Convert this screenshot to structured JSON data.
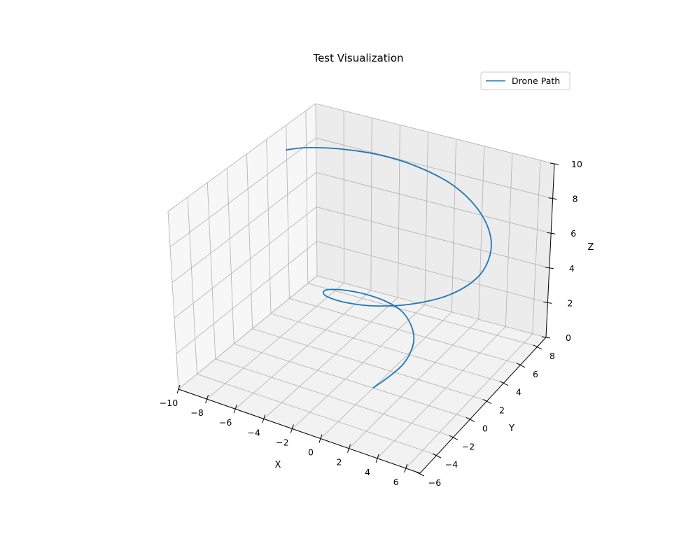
{
  "chart_data": {
    "type": "line",
    "projection": "3d",
    "title": "Test Visualization",
    "xlabel": "X",
    "ylabel": "Y",
    "zlabel": "Z",
    "xlim": [
      -10,
      7
    ],
    "ylim": [
      -6,
      9
    ],
    "zlim": [
      0,
      10
    ],
    "xticks": [
      "−10",
      "−8",
      "−6",
      "−4",
      "−2",
      "0",
      "2",
      "4",
      "6"
    ],
    "yticks": [
      "−6",
      "−4",
      "−2",
      "0",
      "2",
      "4",
      "6",
      "8"
    ],
    "zticks": [
      "0",
      "2",
      "4",
      "6",
      "8",
      "10"
    ],
    "grid": true,
    "legend": "top-right",
    "series": [
      {
        "name": "Drone Path",
        "color": "#1f77b4",
        "x": [
          0.0,
          0.5,
          1.0,
          1.4,
          1.5,
          1.3,
          0.7,
          -0.2,
          -1.3,
          -2.5,
          -3.4,
          -3.9,
          -3.6,
          -2.7,
          -1.0,
          1.0,
          3.2,
          5.1,
          6.0,
          5.8,
          4.8,
          2.9,
          0.5,
          -2.2,
          -4.6,
          -6.6,
          -7.9,
          -8.3
        ],
        "y": [
          0.0,
          0.2,
          0.6,
          1.2,
          1.9,
          2.6,
          3.2,
          3.6,
          3.5,
          3.0,
          2.2,
          1.2,
          0.2,
          -0.7,
          -1.3,
          -1.4,
          -0.8,
          0.5,
          2.2,
          3.9,
          5.4,
          6.8,
          7.7,
          7.9,
          7.4,
          6.3,
          4.9,
          3.5
        ],
        "z": [
          0.0,
          0.37,
          0.74,
          1.11,
          1.48,
          1.85,
          2.22,
          2.59,
          2.96,
          3.33,
          3.7,
          4.07,
          4.44,
          4.81,
          5.19,
          5.56,
          5.93,
          6.3,
          6.67,
          7.04,
          7.41,
          7.78,
          8.15,
          8.52,
          8.89,
          9.26,
          9.63,
          10.0
        ]
      }
    ]
  }
}
